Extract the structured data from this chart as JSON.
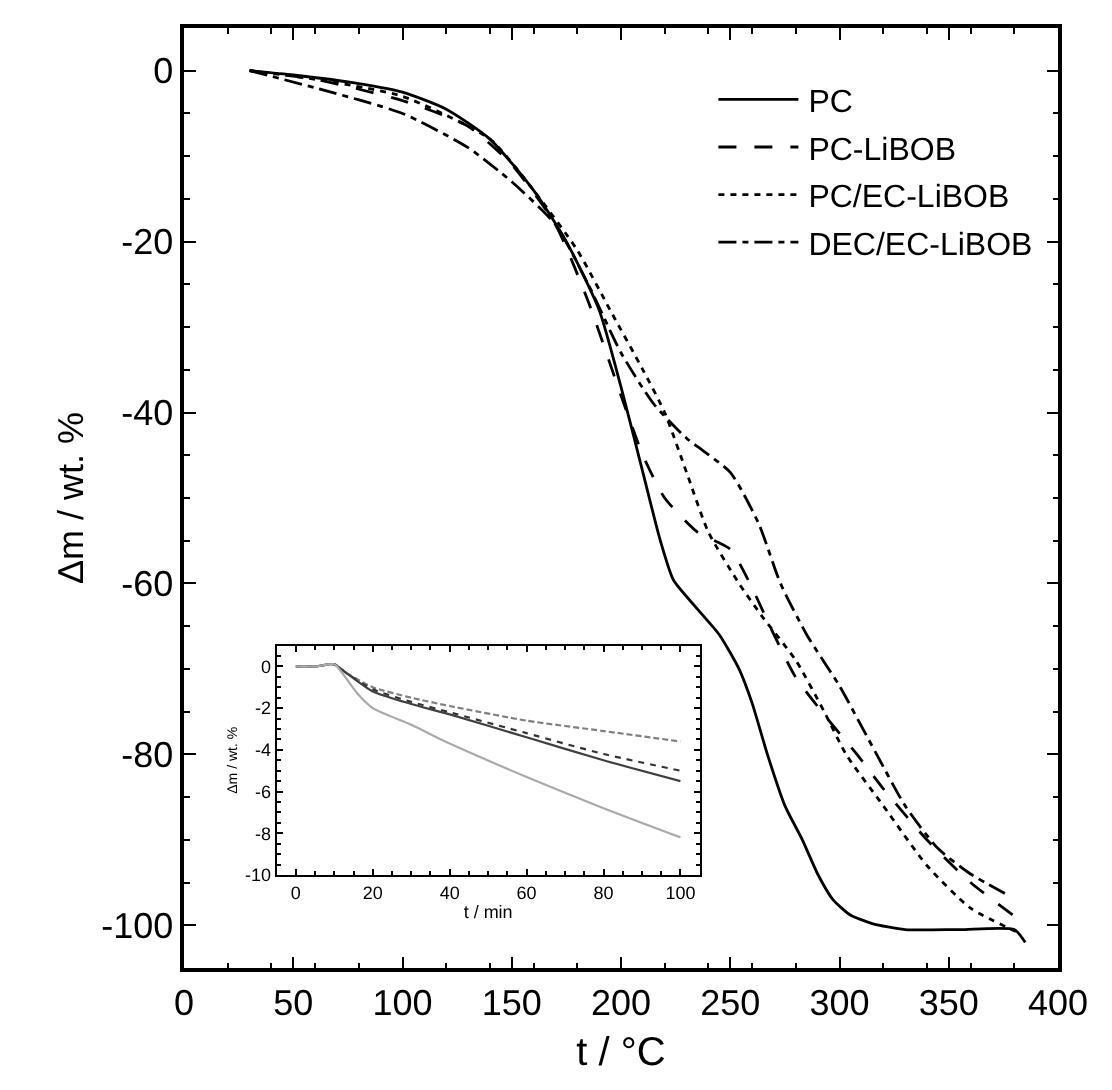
{
  "chart_data": [
    {
      "type": "line",
      "xlabel": "t / °C",
      "ylabel": "Δm / wt. %",
      "xlim": [
        0,
        400
      ],
      "xticks": [
        0,
        50,
        100,
        150,
        200,
        250,
        300,
        350,
        400
      ],
      "ylim": [
        -105,
        5
      ],
      "yticks": [
        0,
        -20,
        -40,
        -60,
        -80,
        -100
      ],
      "grid": false,
      "legend": "top right",
      "marker": "none",
      "series": [
        {
          "name": "PC",
          "color": "#000000",
          "line_style": "solid",
          "x": [
            30,
            50,
            80,
            100,
            120,
            140,
            160,
            175,
            190,
            200,
            210,
            218,
            224,
            235,
            245,
            254,
            260,
            267,
            275,
            283,
            290,
            297,
            305,
            315,
            330,
            355,
            380,
            385
          ],
          "values": [
            0,
            -0.5,
            -1.5,
            -2.5,
            -4.5,
            -8,
            -14,
            -20,
            -28,
            -37,
            -47,
            -55,
            -59.6,
            -63,
            -66,
            -70,
            -74,
            -80,
            -86,
            -90,
            -94,
            -97,
            -98.8,
            -99.8,
            -100.5,
            -100.5,
            -100.5,
            -102
          ]
        },
        {
          "name": "PC-LiBOB",
          "color": "#000000",
          "line_style": "dashed",
          "x": [
            30,
            60,
            100,
            130,
            150,
            170,
            185,
            200,
            210,
            220,
            235,
            250,
            259,
            270,
            280,
            295,
            308,
            320,
            340,
            360,
            383
          ],
          "values": [
            0,
            -1,
            -3.5,
            -6.5,
            -11,
            -18,
            -27,
            -38,
            -45,
            -50,
            -54,
            -56,
            -60,
            -66,
            -71,
            -76,
            -80,
            -84,
            -90,
            -95,
            -99.5
          ]
        },
        {
          "name": "PC/EC-LiBOB",
          "color": "#000000",
          "line_style": "dotted",
          "x": [
            30,
            60,
            100,
            140,
            160,
            180,
            195,
            210,
            220,
            230,
            240,
            254,
            265,
            280,
            293,
            303,
            320,
            340,
            360,
            383
          ],
          "values": [
            0,
            -1,
            -3,
            -8,
            -14,
            -21,
            -28,
            -35,
            -40,
            -47,
            -54,
            -60,
            -64,
            -69,
            -75,
            -80,
            -86,
            -93,
            -98,
            -101
          ]
        },
        {
          "name": "DEC/EC-LiBOB",
          "color": "#000000",
          "line_style": "dashdot",
          "x": [
            30,
            60,
            100,
            130,
            150,
            170,
            185,
            200,
            215,
            230,
            250,
            263,
            273,
            285,
            300,
            317,
            330,
            345,
            360,
            378
          ],
          "values": [
            0,
            -2,
            -5,
            -9,
            -13,
            -18,
            -25,
            -33,
            -39,
            -43,
            -47,
            -53,
            -60,
            -66,
            -72,
            -80,
            -86,
            -91,
            -94,
            -96.6
          ]
        }
      ]
    },
    {
      "type": "line",
      "xlabel": "t / min",
      "ylabel": "Δm / wt. %",
      "xlim": [
        -5,
        105
      ],
      "xticks": [
        0,
        20,
        40,
        60,
        80,
        100
      ],
      "ylim": [
        -10,
        1
      ],
      "yticks": [
        0,
        -2,
        -4,
        -6,
        -8,
        -10
      ],
      "grid": false,
      "legend": false,
      "marker": "none",
      "series": [
        {
          "color": "#808080",
          "line_style": "dashed",
          "x": [
            0,
            5,
            10,
            13,
            20,
            30,
            40,
            60,
            80,
            100
          ],
          "values": [
            0,
            0,
            0.1,
            -0.3,
            -1.0,
            -1.5,
            -1.9,
            -2.6,
            -3.1,
            -3.6
          ]
        },
        {
          "color": "#333333",
          "line_style": "dotted",
          "x": [
            0,
            5,
            10,
            13,
            20,
            30,
            40,
            60,
            80,
            100
          ],
          "values": [
            0,
            0,
            0.1,
            -0.3,
            -1.1,
            -1.7,
            -2.2,
            -3.2,
            -4.2,
            -5.0
          ]
        },
        {
          "color": "#404040",
          "line_style": "solid",
          "x": [
            0,
            5,
            10,
            13,
            20,
            30,
            40,
            60,
            80,
            100
          ],
          "values": [
            0,
            0,
            0.1,
            -0.3,
            -1.2,
            -1.8,
            -2.3,
            -3.4,
            -4.5,
            -5.5
          ]
        },
        {
          "color": "#aaaaaa",
          "line_style": "solid",
          "x": [
            0,
            5,
            10,
            12,
            16,
            20,
            30,
            40,
            60,
            80,
            100
          ],
          "values": [
            0,
            0,
            0.1,
            -0.3,
            -1.3,
            -2.0,
            -2.8,
            -3.7,
            -5.3,
            -6.8,
            -8.2
          ]
        }
      ]
    }
  ]
}
